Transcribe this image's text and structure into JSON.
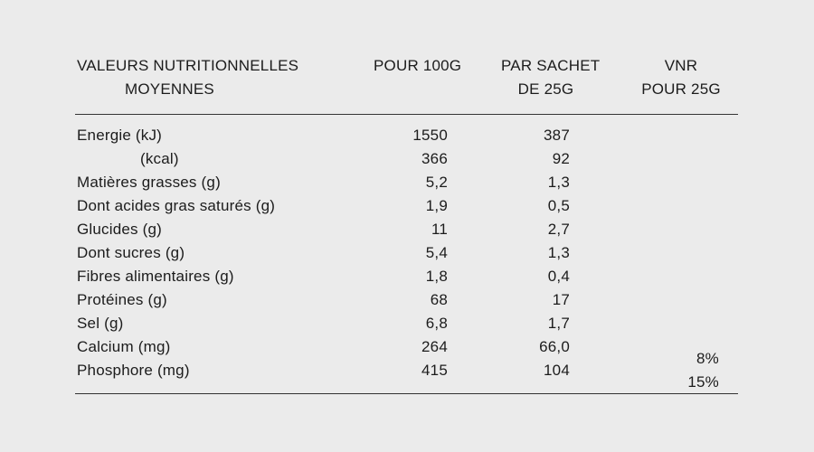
{
  "page": {
    "background_color": "#ebebeb",
    "text_color": "#1c1c1c",
    "rule_color": "#333333"
  },
  "table": {
    "header": {
      "col1_line1": "VALEURS NUTRITIONNELLES",
      "col1_line2": "MOYENNES",
      "col2": "POUR 100G",
      "col3_line1": "PAR SACHET",
      "col3_line2": "DE 25G",
      "col4_line1": "VNR",
      "col4_line2": "POUR 25G"
    },
    "rows": [
      {
        "label": "Energie (kJ)",
        "per_100g": "1550",
        "per_sachet": "387",
        "vnr": ""
      },
      {
        "label": "(kcal)",
        "per_100g": "366",
        "per_sachet": "92",
        "vnr": ""
      },
      {
        "label": "Matières grasses (g)",
        "per_100g": "5,2",
        "per_sachet": "1,3",
        "vnr": ""
      },
      {
        "label": "Dont acides gras saturés (g)",
        "per_100g": "1,9",
        "per_sachet": "0,5",
        "vnr": ""
      },
      {
        "label": "Glucides (g)",
        "per_100g": "11",
        "per_sachet": "2,7",
        "vnr": ""
      },
      {
        "label": "Dont sucres (g)",
        "per_100g": "5,4",
        "per_sachet": "1,3",
        "vnr": ""
      },
      {
        "label": "Fibres alimentaires (g)",
        "per_100g": "1,8",
        "per_sachet": "0,4",
        "vnr": ""
      },
      {
        "label": "Protéines (g)",
        "per_100g": "68",
        "per_sachet": "17",
        "vnr": ""
      },
      {
        "label": "Sel (g)",
        "per_100g": "6,8",
        "per_sachet": "1,7",
        "vnr": ""
      },
      {
        "label": "Calcium (mg)",
        "per_100g": "264",
        "per_sachet": "66,0",
        "vnr": "8%"
      },
      {
        "label": "Phosphore (mg)",
        "per_100g": "415",
        "per_sachet": "104",
        "vnr": "15%"
      }
    ]
  }
}
